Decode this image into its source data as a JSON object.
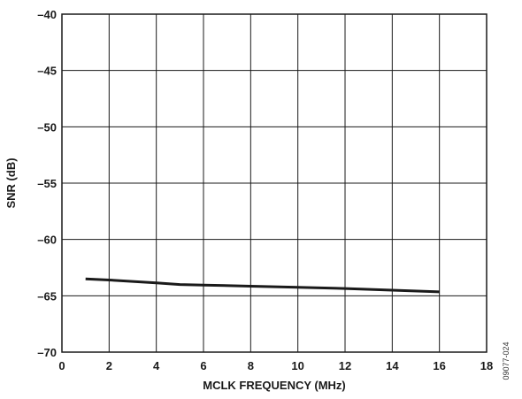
{
  "chart_data": {
    "type": "line",
    "xlabel": "MCLK FREQUENCY (MHz)",
    "ylabel": "SNR (dB)",
    "xlim": [
      0,
      18
    ],
    "ylim": [
      -70,
      -40
    ],
    "x_ticks": [
      0,
      2,
      4,
      6,
      8,
      10,
      12,
      14,
      16,
      18
    ],
    "y_ticks": [
      -40,
      -45,
      -50,
      -55,
      -60,
      -65,
      -70
    ],
    "x_tick_labels": [
      "0",
      "2",
      "4",
      "6",
      "8",
      "10",
      "12",
      "14",
      "16",
      "18"
    ],
    "y_tick_labels": [
      "–40",
      "–45",
      "–50",
      "–55",
      "–60",
      "–65",
      "–70"
    ],
    "grid": true,
    "series": [
      {
        "x": [
          1,
          2,
          4,
          5,
          6,
          8,
          10,
          12,
          14,
          16
        ],
        "y": [
          -63.5,
          -63.6,
          -63.85,
          -64.0,
          -64.05,
          -64.15,
          -64.25,
          -64.35,
          -64.5,
          -64.65
        ],
        "color": "#1a1a1a"
      }
    ],
    "figure_id": "09077-024"
  }
}
